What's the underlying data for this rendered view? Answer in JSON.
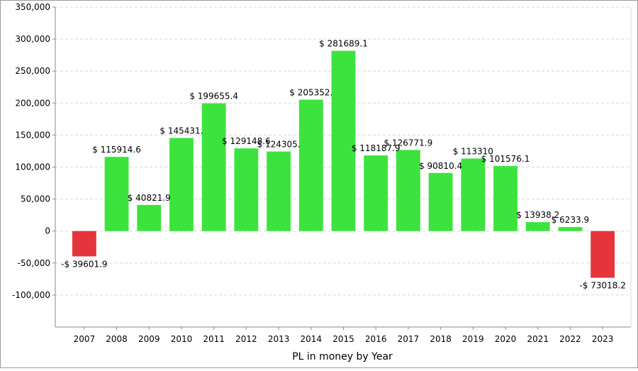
{
  "chart_data": {
    "type": "bar",
    "title": "",
    "xlabel": "PL in money by Year",
    "ylabel": "",
    "ylim": [
      -150000,
      350000
    ],
    "yticks": [
      -100000,
      -50000,
      0,
      50000,
      100000,
      150000,
      200000,
      250000,
      300000,
      350000
    ],
    "ytick_labels": [
      "-100,000",
      "-50,000",
      "0",
      "50,000",
      "100,000",
      "150,000",
      "200,000",
      "250,000",
      "300,000",
      "350,000"
    ],
    "grid": "horizontal dashed",
    "categories": [
      "2007",
      "2008",
      "2009",
      "2010",
      "2011",
      "2012",
      "2013",
      "2014",
      "2015",
      "2016",
      "2017",
      "2018",
      "2019",
      "2020",
      "2021",
      "2022",
      "2023"
    ],
    "values": [
      -39601.9,
      115914.6,
      40821.9,
      145431.0,
      199655.4,
      129148.6,
      124305.0,
      205352.0,
      281689.1,
      118187.9,
      126771.9,
      90810.4,
      113310,
      101576.1,
      13938.2,
      6233.9,
      -73018.2
    ],
    "data_labels": [
      "-$ 39601.9",
      "$ 115914.6",
      "$ 40821.9",
      "$ 145431.",
      "$ 199655.4",
      "$ 129148.6",
      "$ 124305.",
      "$ 205352.",
      "$ 281689.1",
      "$ 118187.9",
      "$ 126771.9",
      "$ 90810.4",
      "$ 113310",
      "$ 101576.1",
      "$ 13938.2",
      "$ 6233.9",
      "-$ 73018.2"
    ],
    "colors": {
      "positive": "#3de33d",
      "negative": "#e3353a",
      "grid": "#d9d9d9",
      "axis": "#888888"
    }
  }
}
